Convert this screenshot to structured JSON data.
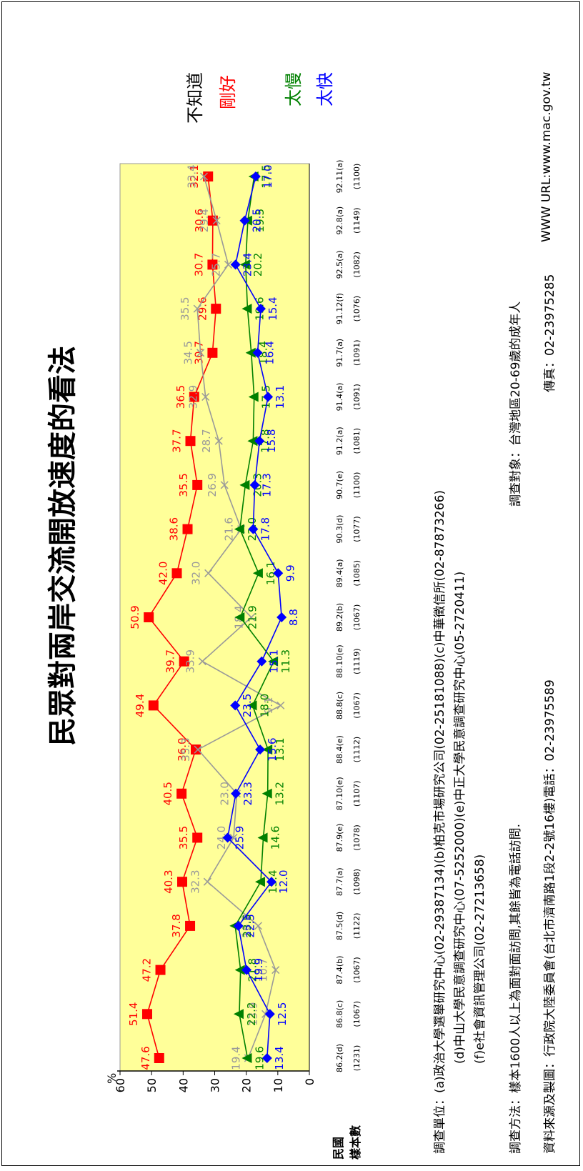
{
  "title": "民眾對兩岸交流開放速度的看法",
  "y_axis_unit": "%",
  "row_labels": {
    "period": "民國",
    "sample": "樣本數"
  },
  "legend": [
    {
      "name": "不知道",
      "color": "#000000"
    },
    {
      "name": "剛好",
      "color": "#ff0000"
    },
    {
      "name": "太慢",
      "color": "#008000"
    },
    {
      "name": "太快",
      "color": "#0000ff"
    }
  ],
  "notes": {
    "line1": "調查單位：(a)政治大學選舉研究中心(02-29387134)(b)柏克市場研究公司(02-25181088)(c)中華徵信所(02-87873266)",
    "line2": "(d)中山大學民意調查研究中心(07-5252000)(e)中正大學民意調查研究中心(05-2720411)",
    "line3": "(f)e社會資訊管理公司(02-27213658)",
    "line4_method": "調查方法：樣本1600人以上為面對面訪問,其餘皆為電話訪問.",
    "line4_target": "調查對象：台灣地區20-69歲的成年人",
    "line5_source": "資料來源及製圖：行政院大陸委員會(台北市濟南路1段2-2號16樓)電話：02-23975589",
    "line5_fax": "傳真：02-23975285",
    "line5_www": "WWW URL:www.mac.gov.tw"
  },
  "chart_data": {
    "type": "line",
    "ylim": [
      0,
      60
    ],
    "yticks": [
      "0",
      "10",
      "20",
      "30",
      "40",
      "50",
      "60"
    ],
    "categories": [
      "86.2(d)",
      "86.8(c)",
      "87.4(b)",
      "87.5(d)",
      "87.7(a)",
      "87.9(e)",
      "87.10(e)",
      "88.4(e)",
      "88.8(c)",
      "88.10(e)",
      "89.2(b)",
      "89.4(a)",
      "90.3(d)",
      "90.7(e)",
      "91.2(a)",
      "91.4(a)",
      "91.7(a)",
      "91.12(f)",
      "92.5(a)",
      "92.8(a)",
      "92.11(a)"
    ],
    "sample_sizes": [
      "(1231)",
      "(1067)",
      "(1067)",
      "(1122)",
      "(1098)",
      "(1078)",
      "(1107)",
      "(1112)",
      "(1067)",
      "(1119)",
      "(1067)",
      "(1085)",
      "(1077)",
      "(1100)",
      "(1081)",
      "(1091)",
      "(1091)",
      "(1076)",
      "(1082)",
      "(1149)",
      "(1100)"
    ],
    "series": [
      {
        "name": "剛好",
        "color": "#ff0000",
        "marker": "square",
        "values": [
          47.6,
          51.4,
          47.2,
          37.8,
          40.3,
          35.5,
          40.5,
          36.0,
          49.4,
          39.7,
          50.9,
          42.0,
          38.6,
          35.5,
          37.7,
          36.5,
          30.7,
          29.6,
          30.7,
          30.6,
          32.1
        ]
      },
      {
        "name": "不知道",
        "color": "#999999",
        "marker": "x",
        "values": [
          19.4,
          13.9,
          10.7,
          16.2,
          32.3,
          24.0,
          23.0,
          35.3,
          9.1,
          33.9,
          18.4,
          32.0,
          21.6,
          26.9,
          28.7,
          32.9,
          34.5,
          35.5,
          25.7,
          29.4,
          33.4
        ]
      },
      {
        "name": "太慢",
        "color": "#008000",
        "marker": "triangle",
        "values": [
          19.6,
          22.2,
          21.8,
          23.5,
          15.4,
          14.6,
          13.2,
          13.1,
          18.0,
          11.3,
          21.9,
          16.1,
          22.0,
          20.3,
          17.8,
          17.5,
          18.4,
          19.6,
          20.2,
          19.5,
          17.5
        ]
      },
      {
        "name": "太快",
        "color": "#0000ff",
        "marker": "diamond",
        "values": [
          13.4,
          12.5,
          19.9,
          22.5,
          12.0,
          25.9,
          23.3,
          15.6,
          23.5,
          15.1,
          8.8,
          9.9,
          17.8,
          17.3,
          15.8,
          13.1,
          16.4,
          15.4,
          23.4,
          20.5,
          17.0
        ]
      }
    ]
  }
}
